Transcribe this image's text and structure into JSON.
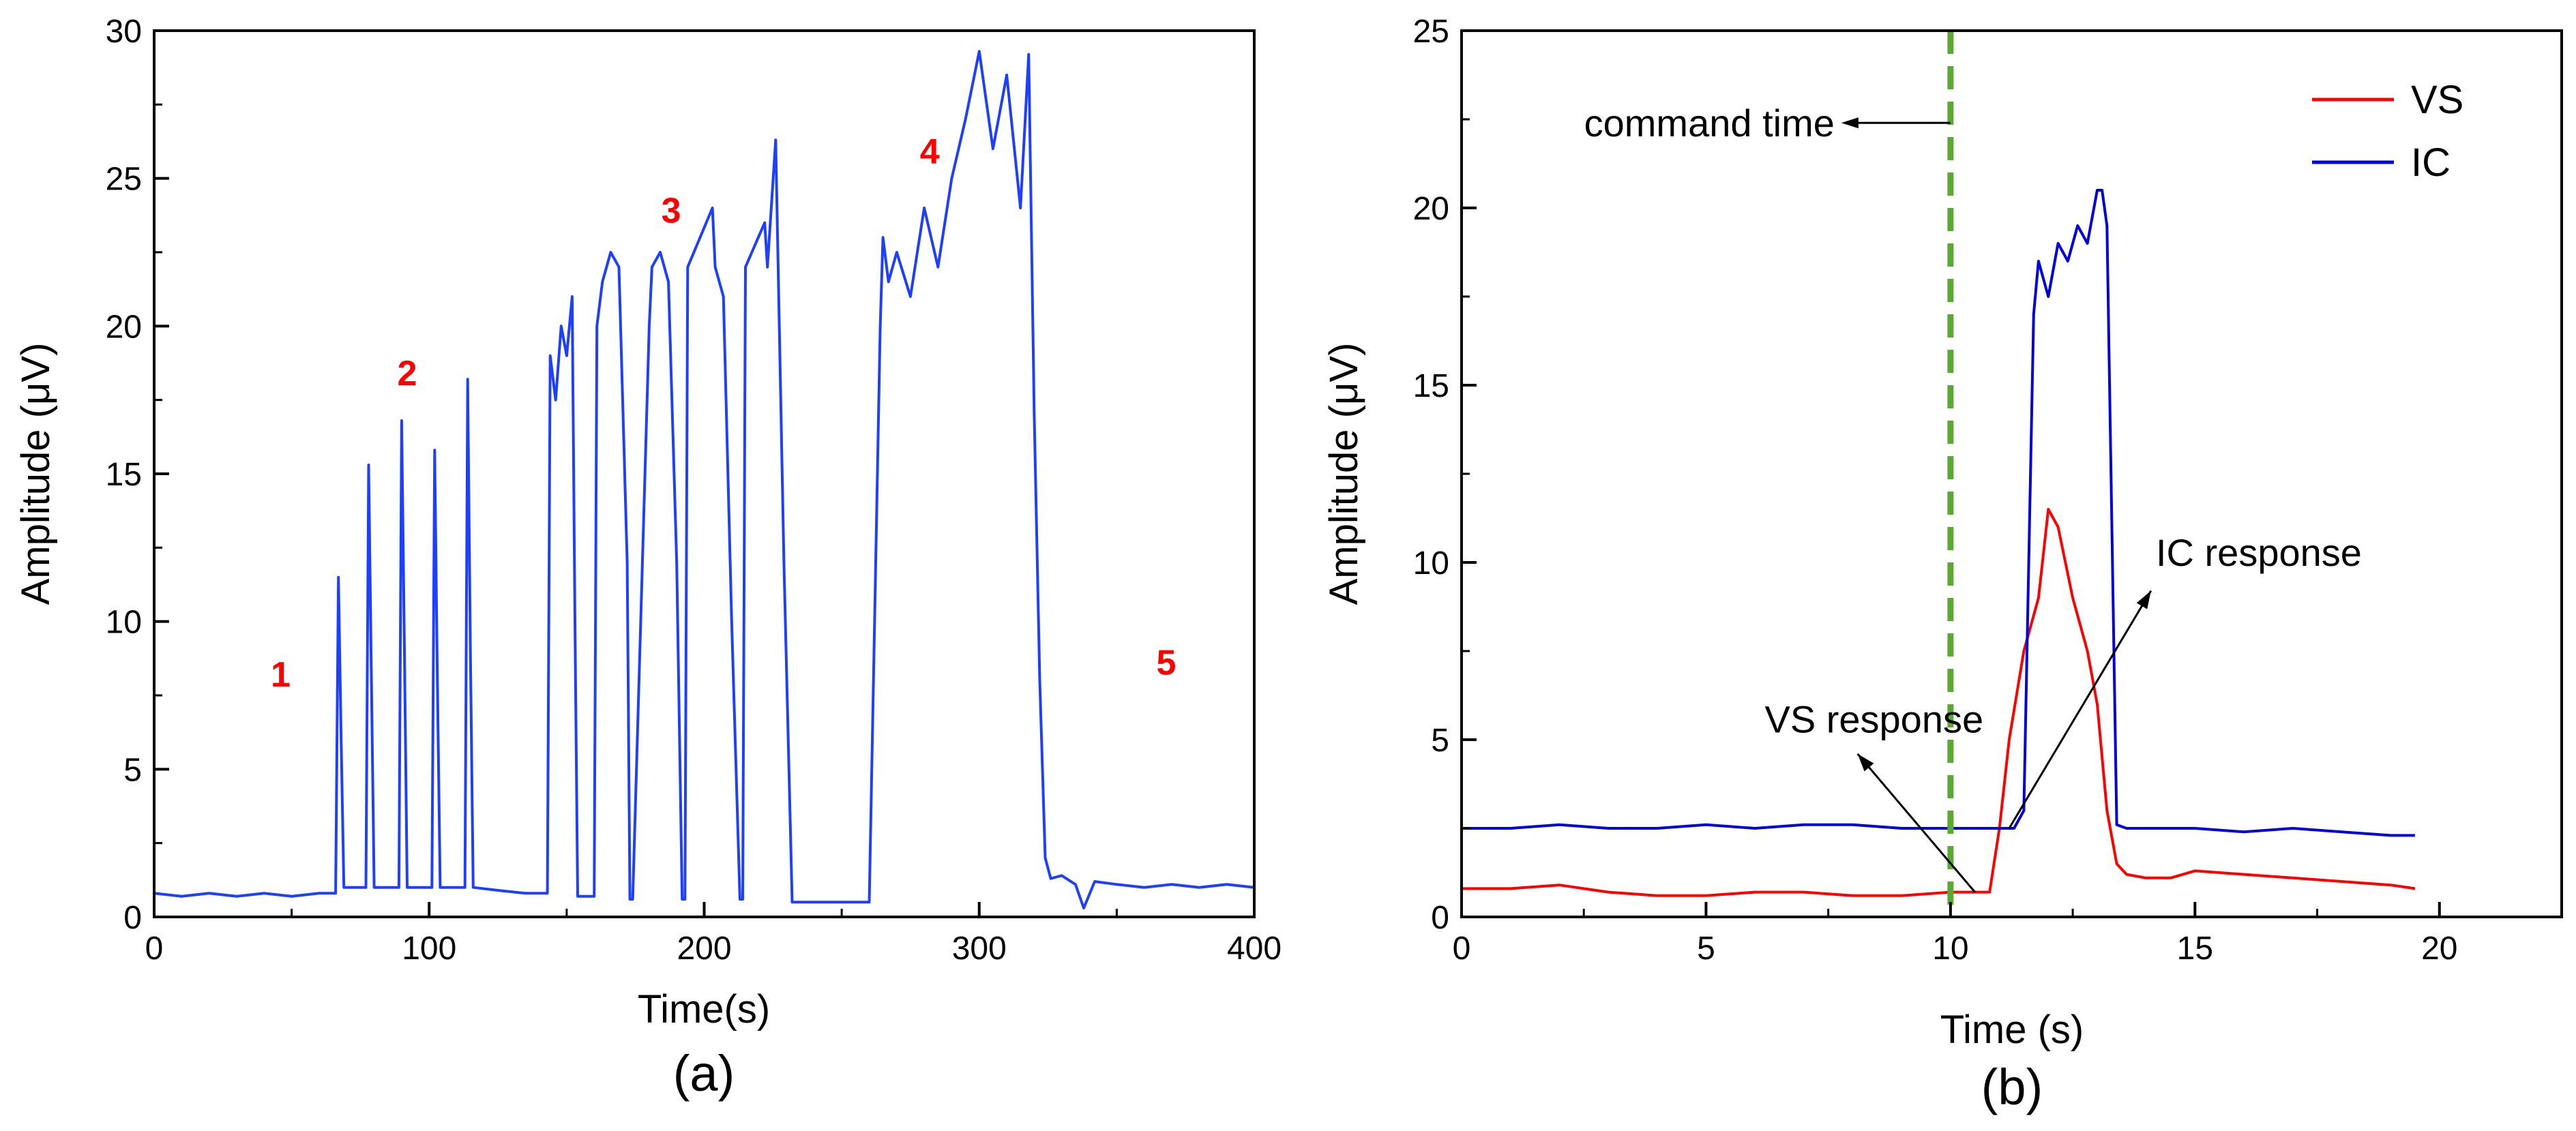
{
  "chart_data": [
    {
      "id": "a",
      "type": "line",
      "caption": "(a)",
      "xlabel": "Time(s)",
      "ylabel": "Amplitude (μV)",
      "xlim": [
        0,
        400
      ],
      "ylim": [
        0,
        30
      ],
      "xticks": [
        0,
        100,
        200,
        300,
        400
      ],
      "yticks": [
        0,
        5,
        10,
        15,
        20,
        25,
        30
      ],
      "x_tick_labels": [
        "0",
        "100",
        "200",
        "300",
        "400"
      ],
      "y_tick_labels": [
        "0",
        "5",
        "10",
        "15",
        "20",
        "25",
        "30"
      ],
      "grid": false,
      "series": [
        {
          "name": "signal",
          "color": "#1f3fff",
          "x": [
            0,
            10,
            20,
            30,
            40,
            50,
            60,
            66,
            67,
            68,
            69,
            77,
            78,
            79,
            80,
            89,
            90,
            91,
            92,
            101,
            102,
            103,
            104,
            113,
            114,
            115,
            116,
            125,
            135,
            143,
            144,
            146,
            148,
            150,
            152,
            153,
            154,
            160,
            161,
            163,
            166,
            169,
            172,
            173,
            174,
            180,
            181,
            184,
            187,
            190,
            192,
            193,
            194,
            203,
            204,
            207,
            210,
            213,
            214,
            215,
            222,
            223,
            226,
            229,
            232,
            233,
            234,
            240,
            250,
            260,
            264,
            265,
            267,
            270,
            275,
            280,
            285,
            290,
            295,
            300,
            305,
            310,
            315,
            318,
            320,
            322,
            324,
            326,
            330,
            335,
            338,
            342,
            350,
            360,
            370,
            380,
            390,
            400
          ],
          "y": [
            0.8,
            0.7,
            0.8,
            0.7,
            0.8,
            0.7,
            0.8,
            0.8,
            11.5,
            6,
            1.0,
            1.0,
            15.3,
            8,
            1.0,
            1.0,
            16.8,
            9,
            1.0,
            1.0,
            15.8,
            8,
            1.0,
            1.0,
            18.2,
            9,
            1.0,
            0.9,
            0.8,
            0.8,
            19,
            17.5,
            20,
            19,
            21,
            10,
            0.7,
            0.7,
            20,
            21.5,
            22.5,
            22,
            12,
            0.6,
            0.6,
            20,
            22,
            22.5,
            21.5,
            12,
            0.6,
            0.6,
            22,
            24,
            22,
            21,
            10,
            0.6,
            0.6,
            22,
            23.5,
            22,
            26.3,
            12,
            0.5,
            0.5,
            0.5,
            0.5,
            0.5,
            0.5,
            20,
            23,
            21.5,
            22.5,
            21,
            24,
            22,
            25,
            27,
            29.3,
            26,
            28.5,
            24,
            29.2,
            17,
            8,
            2,
            1.3,
            1.4,
            1.1,
            0.3,
            1.2,
            1.1,
            1.0,
            1.1,
            1.0,
            1.1,
            1.0
          ]
        }
      ],
      "annotations": [
        {
          "text": "1",
          "x": 46,
          "y": 7.8,
          "color": "#ff0000"
        },
        {
          "text": "2",
          "x": 92,
          "y": 18,
          "color": "#ff0000"
        },
        {
          "text": "3",
          "x": 188,
          "y": 23.5,
          "color": "#ff0000"
        },
        {
          "text": "4",
          "x": 282,
          "y": 25.5,
          "color": "#ff0000"
        },
        {
          "text": "5",
          "x": 368,
          "y": 8.2,
          "color": "#ff0000"
        }
      ]
    },
    {
      "id": "b",
      "type": "line",
      "caption": "(b)",
      "xlabel": "Time (s)",
      "ylabel": "Amplitude (μV)",
      "xlim": [
        0,
        22.5
      ],
      "ylim": [
        0,
        25
      ],
      "xticks": [
        0,
        5,
        10,
        15,
        20
      ],
      "yticks": [
        0,
        5,
        10,
        15,
        20,
        25
      ],
      "x_tick_labels": [
        "0",
        "5",
        "10",
        "15",
        "20"
      ],
      "y_tick_labels": [
        "0",
        "5",
        "10",
        "15",
        "20",
        "25"
      ],
      "grid": false,
      "legend": {
        "position": "top-right",
        "entries": [
          "VS",
          "IC"
        ]
      },
      "series": [
        {
          "name": "VS",
          "color": "#ff0000",
          "x": [
            0,
            1,
            2,
            3,
            4,
            5,
            6,
            7,
            8,
            9,
            10,
            10.5,
            10.8,
            11.0,
            11.2,
            11.5,
            11.8,
            12.0,
            12.2,
            12.5,
            12.8,
            13.0,
            13.2,
            13.4,
            13.6,
            14,
            14.5,
            15,
            16,
            17,
            18,
            19,
            19.5
          ],
          "y": [
            0.8,
            0.8,
            0.9,
            0.7,
            0.6,
            0.6,
            0.7,
            0.7,
            0.6,
            0.6,
            0.7,
            0.7,
            0.7,
            2.5,
            5,
            7.5,
            9,
            11.5,
            11,
            9,
            7.5,
            6,
            3,
            1.5,
            1.2,
            1.1,
            1.1,
            1.3,
            1.2,
            1.1,
            1.0,
            0.9,
            0.8
          ]
        },
        {
          "name": "IC",
          "color": "#0000dd",
          "x": [
            0,
            1,
            2,
            3,
            4,
            5,
            6,
            7,
            8,
            9,
            10,
            10.5,
            11.0,
            11.3,
            11.5,
            11.7,
            11.8,
            12.0,
            12.2,
            12.4,
            12.6,
            12.8,
            13.0,
            13.1,
            13.2,
            13.4,
            13.6,
            14,
            15,
            16,
            17,
            18,
            19,
            19.5
          ],
          "y": [
            2.5,
            2.5,
            2.6,
            2.5,
            2.5,
            2.6,
            2.5,
            2.6,
            2.6,
            2.5,
            2.5,
            2.5,
            2.5,
            2.5,
            3,
            17,
            18.5,
            17.5,
            19,
            18.5,
            19.5,
            19,
            20.5,
            20.5,
            19.5,
            2.6,
            2.5,
            2.5,
            2.5,
            2.4,
            2.5,
            2.4,
            2.3,
            2.3
          ]
        }
      ],
      "command_time": {
        "x": 10,
        "label": "command time",
        "color": "#5aaa32"
      },
      "annotations": [
        {
          "text": "VS response",
          "x": 6.2,
          "y": 5.2
        },
        {
          "text": "IC response",
          "x": 14.2,
          "y": 9.9
        }
      ]
    }
  ]
}
